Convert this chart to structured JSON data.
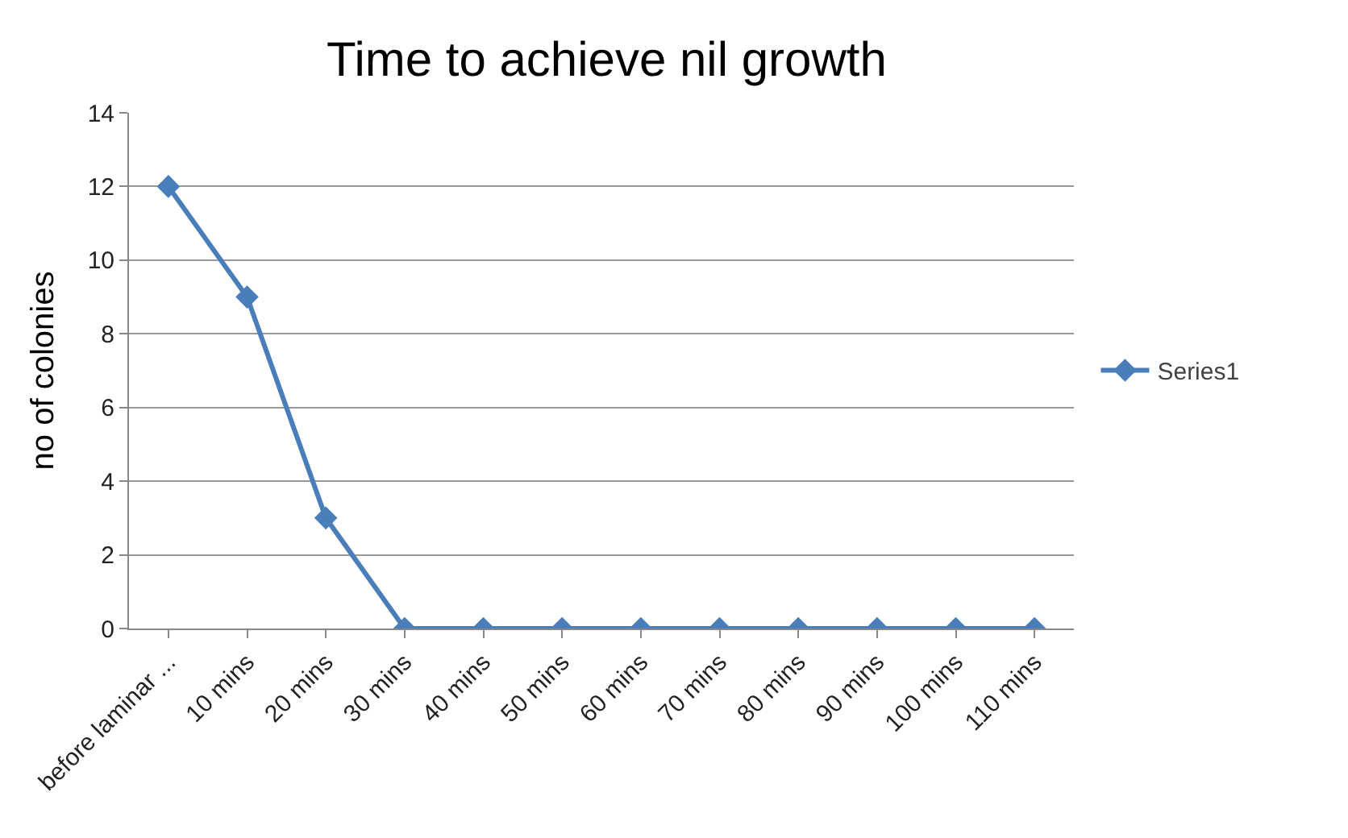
{
  "chart_data": {
    "type": "line",
    "title": "Time to achieve nil growth",
    "ylabel": "no of colonies",
    "categories": [
      "before laminar ...",
      "10 mins",
      "20 mins",
      "30 mins",
      "40 mins",
      "50 mins",
      "60 mins",
      "70 mins",
      "80 mins",
      "90 mins",
      "100 mins",
      "110 mins"
    ],
    "series": [
      {
        "name": "Series1",
        "color": "#4a7ebb",
        "values": [
          12,
          9,
          3,
          0,
          0,
          0,
          0,
          0,
          0,
          0,
          0,
          0
        ]
      }
    ],
    "ylim": [
      0,
      14
    ],
    "yticks": [
      0,
      2,
      4,
      6,
      8,
      10,
      12,
      14
    ],
    "grid": "y",
    "legend": "right",
    "marker": "diamond",
    "line_style": "solid"
  }
}
